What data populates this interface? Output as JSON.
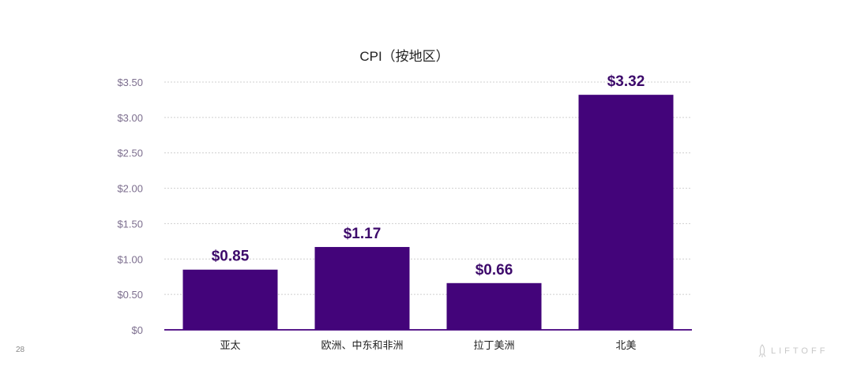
{
  "chart_data": {
    "type": "bar",
    "title": "CPI（按地区）",
    "categories": [
      "亚太",
      "欧洲、中东和非洲",
      "拉丁美洲",
      "北美"
    ],
    "values": [
      0.85,
      1.17,
      0.66,
      3.32
    ],
    "value_labels": [
      "$0.85",
      "$1.17",
      "$0.66",
      "$3.32"
    ],
    "xlabel": "",
    "ylabel": "",
    "ylim": [
      0,
      3.5
    ],
    "yticks": [
      0,
      0.5,
      1.0,
      1.5,
      2.0,
      2.5,
      3.0,
      3.5
    ],
    "ytick_labels": [
      "$0",
      "$0.50",
      "$1.00",
      "$1.50",
      "$2.00",
      "$2.50",
      "$3.00",
      "$3.50"
    ],
    "grid": true,
    "legend": "none",
    "colors": {
      "bar": "#43047a",
      "value_label": "#3d0a6b",
      "tick": "#7c6e8e",
      "axis": "#5a1d8c"
    }
  },
  "footer": {
    "page_number": "28",
    "logo_text": "LIFTOFF"
  }
}
